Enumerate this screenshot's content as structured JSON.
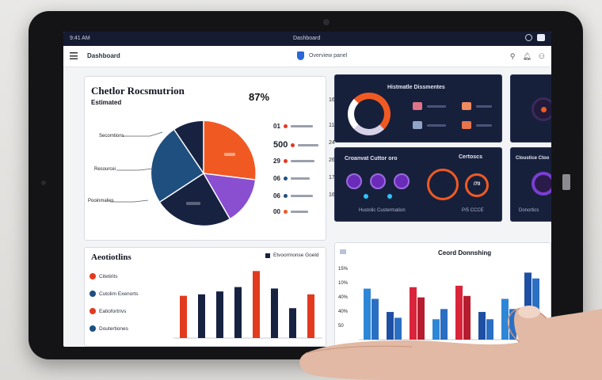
{
  "statusbar": {
    "left_text": "9:41  AM",
    "center_text": "Dashboard",
    "right_icons": [
      "circle-status-icon",
      "battery-icon"
    ]
  },
  "header": {
    "title": "Dashboard",
    "center_text": "Overview panel",
    "right_icons": [
      "search-icon",
      "bell-icon",
      "user-icon"
    ]
  },
  "pie_panel": {
    "title": "Chetlor Rocsmutrion",
    "subtitle": "Estimated",
    "big_value": "87%",
    "side_numbers": [
      "16",
      "11",
      "24",
      "26",
      "17",
      "16"
    ],
    "labels_left": [
      "Secorntions",
      "Resourcei",
      "Pooinmalies"
    ],
    "list_values": [
      "01",
      "500",
      "29",
      "06",
      "06",
      "00"
    ],
    "colors": {
      "navy": "#172241",
      "orange": "#f05a22",
      "blue": "#1f4f7f",
      "purple": "#8a4ed1"
    }
  },
  "dark_card_top": {
    "title": "Histmatle Dissmentes"
  },
  "dark_card_bottom": {
    "title": "Croanvat Cuttor oro",
    "title_right": "Certoscs",
    "foot_left": "Hustolic Custermation",
    "foot_right": "P/5 CCCE",
    "ring_value": "/70"
  },
  "side_card_top": {
    "title": ""
  },
  "side_card_bottom": {
    "title": "Cloustice Ctoo",
    "foot": "Donortics"
  },
  "bar_panel_left": {
    "title": "Aeotiotlins",
    "legend": "Etvoormonse Goeld",
    "items": [
      "Citetirits",
      "Cutolim Exenorts",
      "Eatiofortrivs",
      "Doutertiones"
    ],
    "chart_data": {
      "type": "bar",
      "categories": [
        "1",
        "2",
        "3",
        "4",
        "5",
        "6",
        "7",
        "8"
      ],
      "series": [
        {
          "values": [
            58,
            60,
            64,
            70,
            92,
            68,
            41,
            60
          ]
        }
      ],
      "colors": [
        "#e23a1e",
        "#172241",
        "#172241",
        "#172241",
        "#e23a1e",
        "#172241",
        "#172241",
        "#e23a1e"
      ],
      "ylim": [
        0,
        100
      ]
    }
  },
  "bar_panel_right": {
    "title": "Ceord Donnshing",
    "legend_icon": "chart-icon",
    "yticks": [
      "15%",
      "10%",
      "40%",
      "40%",
      "50"
    ],
    "chart_data": {
      "type": "bar",
      "categories": [
        "A",
        "B",
        "C",
        "D",
        "E",
        "F",
        "G",
        "H"
      ],
      "series": [
        {
          "values": [
            70,
            38,
            72,
            28,
            74,
            38,
            56,
            92
          ]
        },
        {
          "values": [
            56,
            30,
            58,
            42,
            60,
            28,
            42,
            84
          ]
        }
      ],
      "colors": [
        "#2e86d6",
        "#1e4fa3",
        "#d9243a",
        "#2e86d6",
        "#d9243a",
        "#1e4fa3",
        "#2e86d6",
        "#1e4fa3"
      ],
      "ylim": [
        0,
        100
      ]
    }
  }
}
